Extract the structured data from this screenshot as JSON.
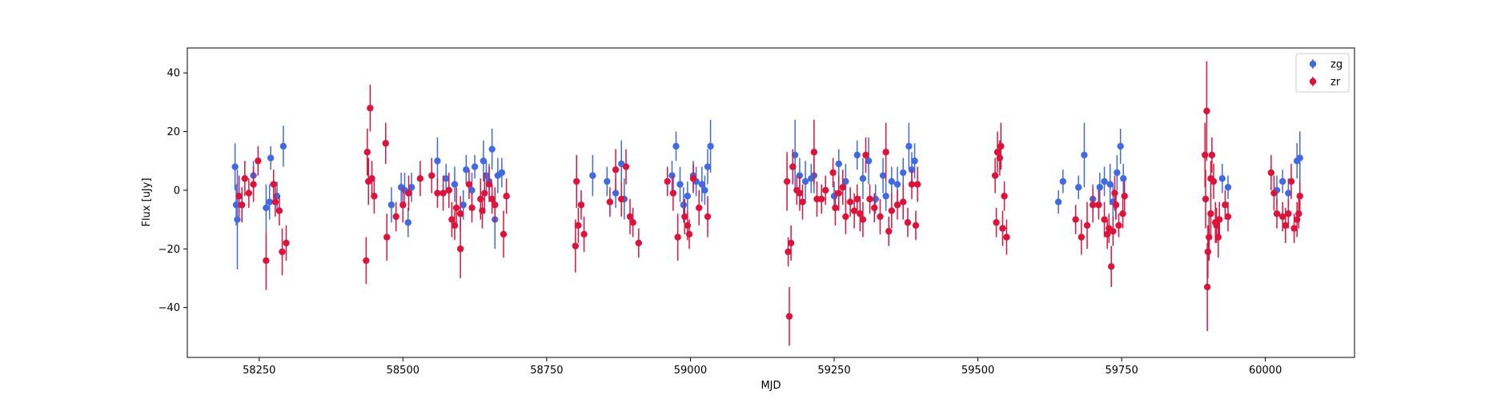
{
  "chart_data": {
    "type": "scatter",
    "title": "",
    "xlabel": "MJD",
    "ylabel": "Flux [uJy]",
    "xlim": [
      58125,
      60155
    ],
    "ylim": [
      -57,
      48.5
    ],
    "xticks": [
      58250,
      58500,
      58750,
      59000,
      59250,
      59500,
      59750,
      60000
    ],
    "yticks": [
      -40,
      -20,
      0,
      20,
      40
    ],
    "xtick_labels": [
      "58250",
      "58500",
      "58750",
      "59000",
      "59250",
      "59500",
      "59750",
      "60000"
    ],
    "ytick_labels": [
      "−40",
      "−20",
      "0",
      "20",
      "40"
    ],
    "legend_position": "upper-right",
    "grid": false,
    "series": [
      {
        "name": "zg",
        "color": "#4169e1",
        "points": [
          [
            58208,
            8,
            8
          ],
          [
            58210,
            -5,
            7
          ],
          [
            58212,
            -10,
            17
          ],
          [
            58240,
            5,
            5
          ],
          [
            58262,
            -6,
            8
          ],
          [
            58270,
            11,
            4
          ],
          [
            58281,
            -2,
            5
          ],
          [
            58292,
            15,
            7
          ],
          [
            58268,
            -4,
            6
          ],
          [
            58480,
            -5,
            6
          ],
          [
            58497,
            1,
            5
          ],
          [
            58503,
            0,
            6
          ],
          [
            58509,
            -11,
            5
          ],
          [
            58515,
            1,
            5
          ],
          [
            58560,
            10,
            8
          ],
          [
            58575,
            4,
            5
          ],
          [
            58590,
            2,
            6
          ],
          [
            58605,
            -5,
            5
          ],
          [
            58610,
            7,
            5
          ],
          [
            58625,
            8,
            4
          ],
          [
            58640,
            10,
            7
          ],
          [
            58650,
            3,
            6
          ],
          [
            58655,
            14,
            7
          ],
          [
            58660,
            -10,
            10
          ],
          [
            58665,
            5,
            6
          ],
          [
            58672,
            6,
            5
          ],
          [
            58620,
            0,
            6
          ],
          [
            58645,
            5,
            5
          ],
          [
            58830,
            5,
            7
          ],
          [
            58855,
            3,
            5
          ],
          [
            58870,
            -1,
            5
          ],
          [
            58880,
            9,
            8
          ],
          [
            58885,
            -3,
            7
          ],
          [
            58968,
            5,
            5
          ],
          [
            58975,
            15,
            5
          ],
          [
            58982,
            2,
            6
          ],
          [
            58988,
            -5,
            6
          ],
          [
            58995,
            -2,
            5
          ],
          [
            59005,
            5,
            5
          ],
          [
            59010,
            3,
            5
          ],
          [
            59020,
            2,
            6
          ],
          [
            59030,
            8,
            6
          ],
          [
            59035,
            15,
            9
          ],
          [
            59025,
            0,
            5
          ],
          [
            59182,
            12,
            12
          ],
          [
            59190,
            5,
            6
          ],
          [
            59200,
            3,
            7
          ],
          [
            59210,
            4,
            5
          ],
          [
            59215,
            5,
            6
          ],
          [
            59250,
            -2,
            5
          ],
          [
            59258,
            9,
            5
          ],
          [
            59270,
            3,
            6
          ],
          [
            59290,
            12,
            5
          ],
          [
            59300,
            4,
            7
          ],
          [
            59310,
            10,
            8
          ],
          [
            59322,
            -3,
            5
          ],
          [
            59335,
            5,
            6
          ],
          [
            59350,
            3,
            5
          ],
          [
            59360,
            2,
            6
          ],
          [
            59370,
            6,
            5
          ],
          [
            59380,
            15,
            8
          ],
          [
            59385,
            7,
            6
          ],
          [
            59390,
            10,
            6
          ],
          [
            59340,
            -2,
            5
          ],
          [
            59640,
            -4,
            4
          ],
          [
            59648,
            3,
            4
          ],
          [
            59675,
            1,
            4
          ],
          [
            59685,
            12,
            11
          ],
          [
            59700,
            -3,
            5
          ],
          [
            59712,
            1,
            5
          ],
          [
            59720,
            3,
            5
          ],
          [
            59730,
            2,
            7
          ],
          [
            59735,
            -4,
            6
          ],
          [
            59742,
            6,
            6
          ],
          [
            59748,
            15,
            6
          ],
          [
            59753,
            4,
            5
          ],
          [
            59740,
            -5,
            5
          ],
          [
            59925,
            4,
            5
          ],
          [
            59935,
            1,
            4
          ],
          [
            60020,
            0,
            5
          ],
          [
            60030,
            3,
            4
          ],
          [
            60040,
            -1,
            5
          ],
          [
            60055,
            10,
            6
          ],
          [
            60060,
            11,
            9
          ]
        ]
      },
      {
        "name": "zr",
        "color": "#dc143c",
        "points": [
          [
            58220,
            -5,
            6
          ],
          [
            58225,
            4,
            6
          ],
          [
            58232,
            -1,
            5
          ],
          [
            58240,
            2,
            6
          ],
          [
            58248,
            10,
            5
          ],
          [
            58262,
            -24,
            10
          ],
          [
            58275,
            2,
            5
          ],
          [
            58278,
            -4,
            5
          ],
          [
            58285,
            -7,
            5
          ],
          [
            58290,
            -21,
            8
          ],
          [
            58297,
            -18,
            6
          ],
          [
            58215,
            -2,
            7
          ],
          [
            58436,
            -24,
            8
          ],
          [
            58438,
            13,
            8
          ],
          [
            58440,
            3,
            8
          ],
          [
            58443,
            28,
            8
          ],
          [
            58446,
            4,
            6
          ],
          [
            58450,
            -2,
            6
          ],
          [
            58470,
            16,
            7
          ],
          [
            58472,
            -16,
            8
          ],
          [
            58488,
            -9,
            5
          ],
          [
            58500,
            -5,
            6
          ],
          [
            58510,
            -1,
            6
          ],
          [
            58530,
            4,
            6
          ],
          [
            58550,
            5,
            6
          ],
          [
            58560,
            -1,
            5
          ],
          [
            58570,
            -1,
            6
          ],
          [
            58580,
            0,
            6
          ],
          [
            58585,
            -10,
            6
          ],
          [
            58590,
            -12,
            5
          ],
          [
            58593,
            -6,
            7
          ],
          [
            58600,
            -20,
            10
          ],
          [
            58615,
            2,
            5
          ],
          [
            58620,
            -6,
            5
          ],
          [
            58635,
            -3,
            7
          ],
          [
            58638,
            -7,
            6
          ],
          [
            58642,
            -1,
            7
          ],
          [
            58650,
            2,
            6
          ],
          [
            58655,
            -3,
            5
          ],
          [
            58660,
            -5,
            6
          ],
          [
            58675,
            -15,
            8
          ],
          [
            58680,
            -2,
            6
          ],
          [
            58600,
            -8,
            6
          ],
          [
            58800,
            -19,
            9
          ],
          [
            58802,
            3,
            9
          ],
          [
            58805,
            -12,
            6
          ],
          [
            58810,
            -5,
            5
          ],
          [
            58815,
            -15,
            6
          ],
          [
            58860,
            -4,
            5
          ],
          [
            58880,
            -3,
            6
          ],
          [
            58888,
            8,
            6
          ],
          [
            58895,
            -9,
            6
          ],
          [
            58900,
            -11,
            5
          ],
          [
            58910,
            -18,
            5
          ],
          [
            58870,
            7,
            7
          ],
          [
            58960,
            3,
            5
          ],
          [
            58970,
            -1,
            6
          ],
          [
            58978,
            -16,
            8
          ],
          [
            58990,
            -9,
            6
          ],
          [
            58995,
            -12,
            5
          ],
          [
            59005,
            4,
            5
          ],
          [
            59015,
            -6,
            6
          ],
          [
            59030,
            -9,
            7
          ],
          [
            58998,
            -15,
            5
          ],
          [
            59168,
            3,
            10
          ],
          [
            59170,
            -21,
            5
          ],
          [
            59172,
            -43,
            10
          ],
          [
            59175,
            -18,
            6
          ],
          [
            59178,
            8,
            6
          ],
          [
            59185,
            0,
            5
          ],
          [
            59190,
            -1,
            6
          ],
          [
            59195,
            -4,
            6
          ],
          [
            59215,
            13,
            11
          ],
          [
            59220,
            -3,
            6
          ],
          [
            59228,
            -3,
            5
          ],
          [
            59235,
            0,
            5
          ],
          [
            59248,
            6,
            5
          ],
          [
            59252,
            -6,
            6
          ],
          [
            59258,
            -1,
            6
          ],
          [
            59270,
            -9,
            6
          ],
          [
            59278,
            -4,
            5
          ],
          [
            59285,
            -7,
            6
          ],
          [
            59290,
            -3,
            5
          ],
          [
            59295,
            -8,
            6
          ],
          [
            59300,
            -10,
            6
          ],
          [
            59305,
            12,
            6
          ],
          [
            59312,
            -3,
            5
          ],
          [
            59320,
            -6,
            5
          ],
          [
            59330,
            -9,
            6
          ],
          [
            59340,
            13,
            10
          ],
          [
            59345,
            -14,
            5
          ],
          [
            59350,
            -7,
            6
          ],
          [
            59360,
            -5,
            5
          ],
          [
            59370,
            -4,
            6
          ],
          [
            59378,
            -11,
            5
          ],
          [
            59385,
            2,
            5
          ],
          [
            59392,
            -12,
            5
          ],
          [
            59395,
            2,
            6
          ],
          [
            59265,
            1,
            6
          ],
          [
            59530,
            5,
            6
          ],
          [
            59532,
            -11,
            5
          ],
          [
            59534,
            13,
            7
          ],
          [
            59538,
            11,
            6
          ],
          [
            59540,
            15,
            8
          ],
          [
            59543,
            -13,
            6
          ],
          [
            59546,
            -2,
            5
          ],
          [
            59550,
            -16,
            6
          ],
          [
            59670,
            -10,
            5
          ],
          [
            59680,
            -16,
            6
          ],
          [
            59690,
            -12,
            8
          ],
          [
            59700,
            -5,
            6
          ],
          [
            59710,
            -5,
            5
          ],
          [
            59720,
            -10,
            6
          ],
          [
            59725,
            -15,
            5
          ],
          [
            59728,
            -13,
            5
          ],
          [
            59732,
            -26,
            7
          ],
          [
            59735,
            -14,
            5
          ],
          [
            59740,
            -5,
            5
          ],
          [
            59745,
            -12,
            4
          ],
          [
            59752,
            -8,
            5
          ],
          [
            59755,
            -2,
            5
          ],
          [
            59738,
            -1,
            6
          ],
          [
            59895,
            12,
            11
          ],
          [
            59896,
            -3,
            10
          ],
          [
            59898,
            27,
            17
          ],
          [
            59899,
            -33,
            15
          ],
          [
            59900,
            -21,
            9
          ],
          [
            59902,
            -16,
            8
          ],
          [
            59905,
            -8,
            7
          ],
          [
            59907,
            12,
            6
          ],
          [
            59910,
            3,
            6
          ],
          [
            59913,
            -11,
            7
          ],
          [
            59915,
            -12,
            6
          ],
          [
            59918,
            -16,
            7
          ],
          [
            59920,
            -10,
            6
          ],
          [
            59930,
            -5,
            5
          ],
          [
            59935,
            -9,
            5
          ],
          [
            59905,
            4,
            6
          ],
          [
            60010,
            6,
            6
          ],
          [
            60015,
            -1,
            6
          ],
          [
            60020,
            -8,
            5
          ],
          [
            60030,
            -9,
            5
          ],
          [
            60035,
            -12,
            6
          ],
          [
            60040,
            -8,
            5
          ],
          [
            60045,
            3,
            6
          ],
          [
            60050,
            -13,
            5
          ],
          [
            60055,
            -10,
            6
          ],
          [
            60058,
            -8,
            5
          ],
          [
            60060,
            -2,
            5
          ]
        ]
      }
    ]
  }
}
